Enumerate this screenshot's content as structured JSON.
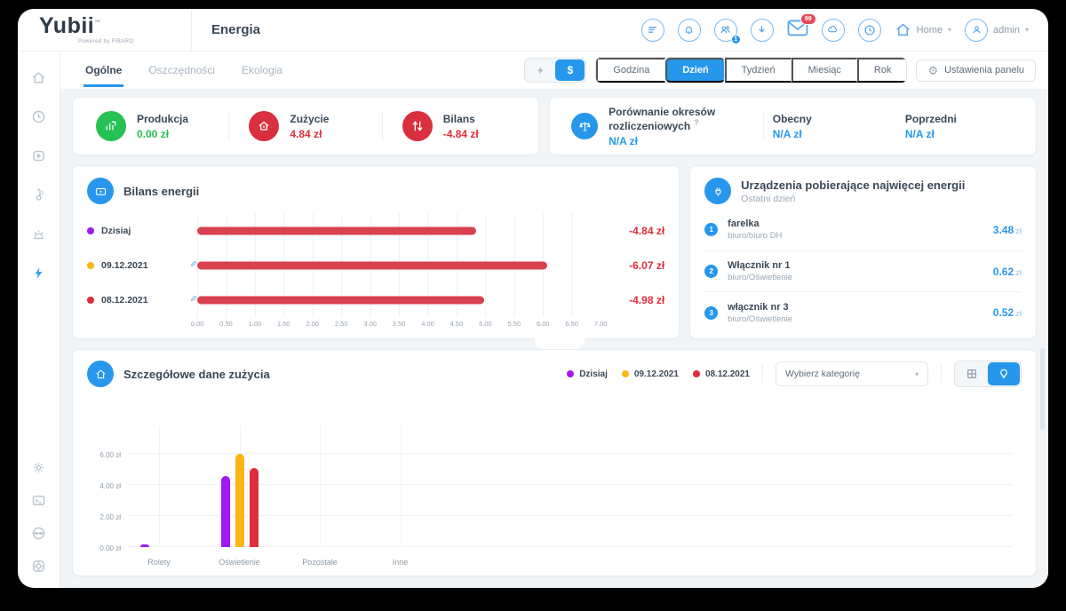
{
  "app": {
    "logo": "Yubii",
    "logo_tm": "™",
    "logo_sub": "Powered by FIBARO",
    "page_title": "Energia"
  },
  "topbar": {
    "users_badge": "1",
    "mail_badge": "99",
    "home_label": "Home",
    "user_label": "admin"
  },
  "tabs": [
    {
      "label": "Ogólne",
      "active": true
    },
    {
      "label": "Oszczędności",
      "active": false
    },
    {
      "label": "Ekologia",
      "active": false
    }
  ],
  "controls": {
    "unit_bolt": "⚡",
    "unit_currency": "$",
    "active_unit": "currency",
    "periods": [
      "Godzina",
      "Dzień",
      "Tydzień",
      "Miesiąc",
      "Rok"
    ],
    "active_period": "Dzień",
    "panel_settings_label": "Ustawienia panelu"
  },
  "stats": {
    "produkcja": {
      "label": "Produkcja",
      "value": "0.00 zł",
      "color": "#26c152"
    },
    "zuzycie": {
      "label": "Zużycie",
      "value": "4.84 zł",
      "color": "#d8303f"
    },
    "bilans": {
      "label": "Bilans",
      "value": "-4.84 zł",
      "color": "#d8303f"
    },
    "comparison": {
      "label": "Porównanie okresów rozliczeniowych",
      "hint": "?",
      "value": "N/A zł",
      "current_label": "Obecny",
      "current_value": "N/A zł",
      "previous_label": "Poprzedni",
      "previous_value": "N/A zł"
    }
  },
  "top_devices": {
    "title": "Urządzenia pobierające najwięcej energii",
    "subtitle": "Ostatni dzień",
    "items": [
      {
        "rank": "1",
        "name": "farelka",
        "location": "biuro/biuro DH",
        "value": "3.48",
        "unit": "zł"
      },
      {
        "rank": "2",
        "name": "Włącznik nr 1",
        "location": "biuro/Oświetlenie",
        "value": "0.62",
        "unit": "zł"
      },
      {
        "rank": "3",
        "name": "włącznik nr 3",
        "location": "biuro/Oświetlenie",
        "value": "0.52",
        "unit": "zł"
      }
    ]
  },
  "detail": {
    "title": "Szczegółowe dane zużycia",
    "dropdown_value": "Wybierz kategorię"
  },
  "chart_data": [
    {
      "type": "bar",
      "orientation": "horizontal",
      "title": "Bilans energii",
      "bar_color": "#d8414e",
      "xlim": [
        0,
        7
      ],
      "xticks": [
        "0.00",
        "0.50",
        "1.00",
        "1.50",
        "2.00",
        "2.50",
        "3.00",
        "3.50",
        "4.00",
        "4.50",
        "5.00",
        "5.50",
        "6.00",
        "6.50",
        "7.00"
      ],
      "rows": [
        {
          "label": "Dzisiaj",
          "color": "#a119f0",
          "value": 4.84,
          "display": "-4.84 zł",
          "editable": false
        },
        {
          "label": "09.12.2021",
          "color": "#fdb513",
          "value": 6.07,
          "display": "-6.07 zł",
          "editable": true
        },
        {
          "label": "08.12.2021",
          "color": "#e02d3c",
          "value": 4.98,
          "display": "-4.98 zł",
          "editable": true
        }
      ]
    },
    {
      "type": "bar",
      "orientation": "vertical",
      "title": "Szczegółowe dane zużycia",
      "categories": [
        "Rolety",
        "Oświetlenie",
        "Pozostałe",
        "Inne"
      ],
      "series": [
        {
          "name": "Dzisiaj",
          "color": "#a119f0",
          "values": [
            0.1,
            4.55,
            0,
            0
          ]
        },
        {
          "name": "09.12.2021",
          "color": "#fdb513",
          "values": [
            0,
            6.0,
            0,
            0
          ]
        },
        {
          "name": "08.12.2021",
          "color": "#e02d3c",
          "values": [
            0,
            5.1,
            0,
            0
          ]
        }
      ],
      "yticks": [
        "0.00 zł",
        "2.00 zł",
        "4.00 zł",
        "6.00 zł"
      ],
      "ytick_values": [
        0,
        2,
        4,
        6
      ],
      "ylim": [
        0,
        7.3
      ],
      "ylabel": "",
      "xlabel": "",
      "legend_position": "top-right",
      "grid": true
    }
  ]
}
